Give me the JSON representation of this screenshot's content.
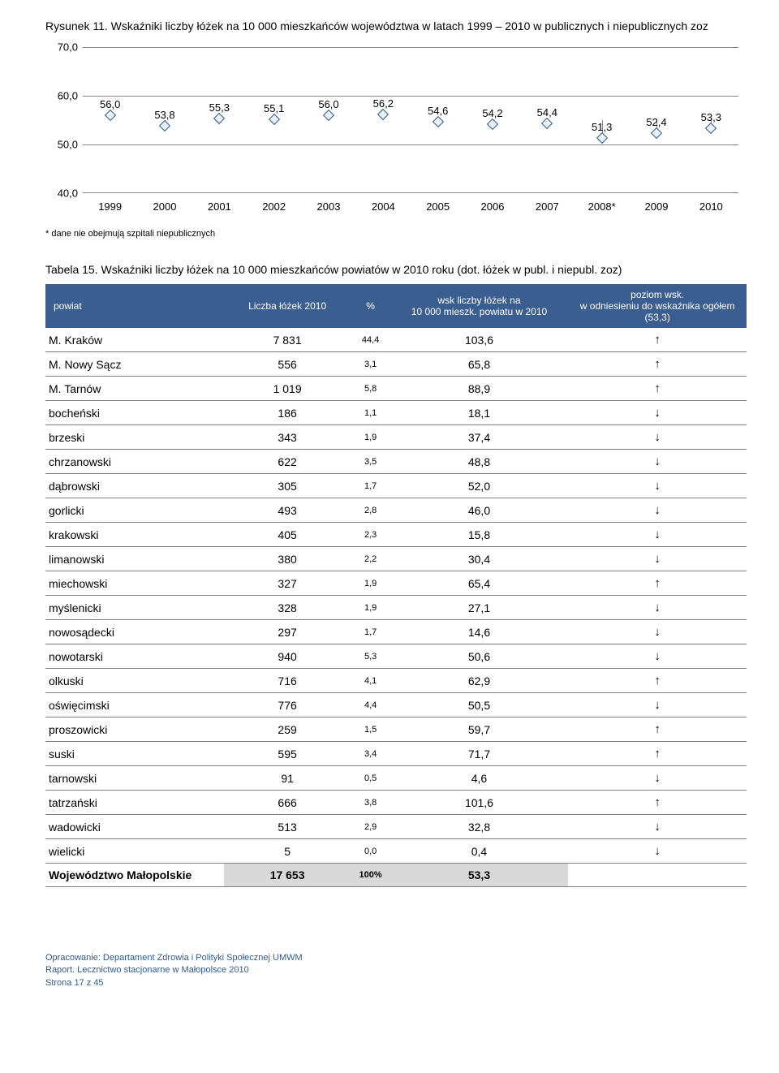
{
  "figure": {
    "caption": "Rysunek 11. Wskaźniki liczby łóżek na 10 000 mieszkańców województwa w latach 1999 – 2010 w publicznych i niepublicznych zoz",
    "footnote": "* dane nie obejmują szpitali niepublicznych",
    "chart": {
      "type": "line",
      "ylim": [
        40,
        70
      ],
      "yticks": [
        40.0,
        50.0,
        60.0,
        70.0
      ],
      "ytick_labels": [
        "40,0",
        "50,0",
        "60,0",
        "70,0"
      ],
      "categories": [
        "1999",
        "2000",
        "2001",
        "2002",
        "2003",
        "2004",
        "2005",
        "2006",
        "2007",
        "2008*",
        "2009",
        "2010"
      ],
      "values": [
        56.0,
        53.8,
        55.3,
        55.1,
        56.0,
        56.2,
        54.6,
        54.2,
        54.4,
        51.3,
        52.4,
        53.3
      ],
      "value_labels": [
        "56,0",
        "53,8",
        "55,3",
        "55,1",
        "56,0",
        "56,2",
        "54,6",
        "54,2",
        "54,4",
        "51,3",
        "52,4",
        "53,3"
      ],
      "marker_border": "#2f5b90",
      "marker_fill": "#eaf0f7",
      "grid_color": "#888888",
      "label_fontsize": 13
    }
  },
  "table": {
    "caption": "Tabela 15. Wskaźniki liczby łóżek na 10 000 mieszkańców powiatów  w 2010 roku (dot. łóżek w publ. i niepubl. zoz)",
    "headers": {
      "powiat": "powiat",
      "liczba": "Liczba łóżek 2010",
      "pct": "%",
      "wsk": "wsk liczby łóżek na\n10 000 mieszk. powiatu w 2010",
      "poziom": "poziom wsk.\nw  odniesieniu  do wskaźnika ogółem (53,3)"
    },
    "rows": [
      {
        "name": "M. Kraków",
        "val": "7 831",
        "pct": "44,4",
        "wsk": "103,6",
        "dir": "up"
      },
      {
        "name": "M. Nowy Sącz",
        "val": "556",
        "pct": "3,1",
        "wsk": "65,8",
        "dir": "up"
      },
      {
        "name": "M. Tarnów",
        "val": "1 019",
        "pct": "5,8",
        "wsk": "88,9",
        "dir": "up"
      },
      {
        "name": "bocheński",
        "val": "186",
        "pct": "1,1",
        "wsk": "18,1",
        "dir": "down"
      },
      {
        "name": "brzeski",
        "val": "343",
        "pct": "1,9",
        "wsk": "37,4",
        "dir": "down"
      },
      {
        "name": "chrzanowski",
        "val": "622",
        "pct": "3,5",
        "wsk": "48,8",
        "dir": "down"
      },
      {
        "name": "dąbrowski",
        "val": "305",
        "pct": "1,7",
        "wsk": "52,0",
        "dir": "down"
      },
      {
        "name": "gorlicki",
        "val": "493",
        "pct": "2,8",
        "wsk": "46,0",
        "dir": "down"
      },
      {
        "name": "krakowski",
        "val": "405",
        "pct": "2,3",
        "wsk": "15,8",
        "dir": "down"
      },
      {
        "name": "limanowski",
        "val": "380",
        "pct": "2,2",
        "wsk": "30,4",
        "dir": "down"
      },
      {
        "name": "miechowski",
        "val": "327",
        "pct": "1,9",
        "wsk": "65,4",
        "dir": "up"
      },
      {
        "name": "myślenicki",
        "val": "328",
        "pct": "1,9",
        "wsk": "27,1",
        "dir": "down"
      },
      {
        "name": "nowosądecki",
        "val": "297",
        "pct": "1,7",
        "wsk": "14,6",
        "dir": "down"
      },
      {
        "name": "nowotarski",
        "val": "940",
        "pct": "5,3",
        "wsk": "50,6",
        "dir": "down"
      },
      {
        "name": "olkuski",
        "val": "716",
        "pct": "4,1",
        "wsk": "62,9",
        "dir": "up"
      },
      {
        "name": "oświęcimski",
        "val": "776",
        "pct": "4,4",
        "wsk": "50,5",
        "dir": "down"
      },
      {
        "name": "proszowicki",
        "val": "259",
        "pct": "1,5",
        "wsk": "59,7",
        "dir": "up"
      },
      {
        "name": "suski",
        "val": "595",
        "pct": "3,4",
        "wsk": "71,7",
        "dir": "up"
      },
      {
        "name": "tarnowski",
        "val": "91",
        "pct": "0,5",
        "wsk": "4,6",
        "dir": "down"
      },
      {
        "name": "tatrzański",
        "val": "666",
        "pct": "3,8",
        "wsk": "101,6",
        "dir": "up"
      },
      {
        "name": "wadowicki",
        "val": "513",
        "pct": "2,9",
        "wsk": "32,8",
        "dir": "down"
      },
      {
        "name": "wielicki",
        "val": "5",
        "pct": "0,0",
        "wsk": "0,4",
        "dir": "down"
      }
    ],
    "total": {
      "name": "Województwo Małopolskie",
      "val": "17 653",
      "pct": "100%",
      "wsk": "53,3"
    },
    "arrow_up": "↑",
    "arrow_down": "↓"
  },
  "footer": {
    "l1": "Opracowanie: Departament Zdrowia i Polityki Społecznej UMWM",
    "l2": "Raport. Lecznictwo stacjonarne w Małopolsce 2010",
    "l3": "Strona 17  z 45"
  }
}
